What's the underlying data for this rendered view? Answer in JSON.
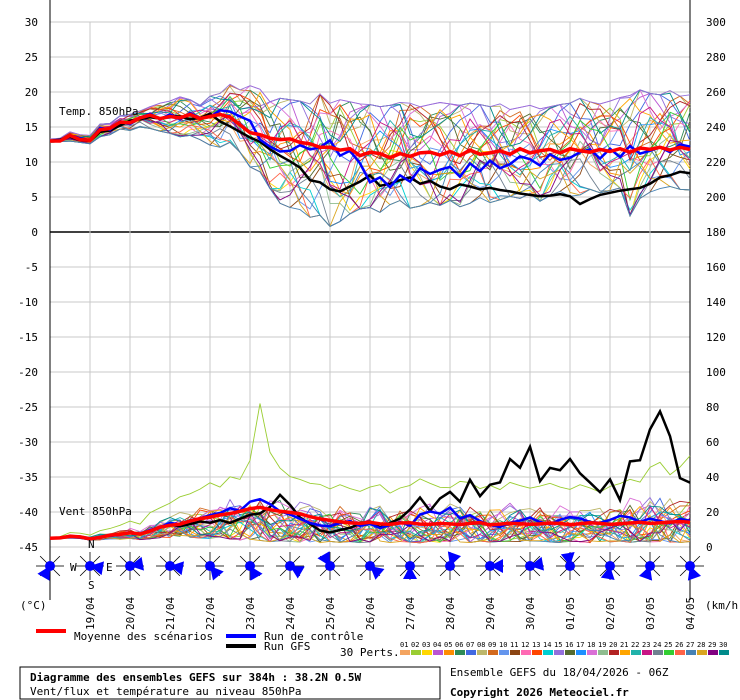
{
  "chart_data": {
    "type": "line",
    "title": "Diagramme des ensembles GEFS sur 384h : 38.2N 0.5W",
    "subtitle": "Vent/flux et température au niveau 850hPa",
    "run_info": "Ensemble GEFS du 18/04/2026 - 06Z",
    "copyright": "Copyright 2026 Meteociel.fr",
    "units_left": "(°C)",
    "units_right": "(km/h)",
    "x_dates": [
      "19/04",
      "20/04",
      "21/04",
      "22/04",
      "23/04",
      "24/04",
      "25/04",
      "26/04",
      "27/04",
      "28/04",
      "29/04",
      "30/04",
      "01/05",
      "02/05",
      "03/05",
      "04/05"
    ],
    "x_range_days": [
      0,
      16
    ],
    "y_left_ticks": [
      30,
      25,
      20,
      15,
      10,
      5,
      0,
      -5,
      -10,
      -15,
      -20,
      -25,
      -30,
      -35,
      -40,
      -45
    ],
    "y_right_ticks": [
      300,
      280,
      260,
      240,
      220,
      200,
      180,
      160,
      140,
      120,
      100,
      80,
      60,
      40,
      20,
      0
    ],
    "y_left_range": [
      -45,
      30
    ],
    "y_right_range": [
      0,
      300
    ],
    "temp_panel": {
      "label": "Temp. 850hPa",
      "unit": "°C",
      "mean": [
        13,
        13,
        13.8,
        13.2,
        13.1,
        14.6,
        14.8,
        15.7,
        15.6,
        16.3,
        16.7,
        16.2,
        16.5,
        16.3,
        16.8,
        16.2,
        16.5,
        16.8,
        16.4,
        15.3,
        14.2,
        13.9,
        13.4,
        13.2,
        13.3,
        12.8,
        12.6,
        12.1,
        12.1,
        11.7,
        11.9,
        10.9,
        11.4,
        11.2,
        10.6,
        11.2,
        10.8,
        11.3,
        11.4,
        11,
        11.5,
        10.9,
        11.7,
        11.1,
        11.3,
        11.6,
        11.1,
        11.9,
        11.3,
        11.6,
        11.8,
        11.3,
        11.9,
        11.6,
        11.4,
        11.8,
        11.5,
        11.9,
        11.4,
        12,
        11.8,
        12.1,
        11.7,
        12.1,
        11.8
      ],
      "control": [
        13,
        13.1,
        13.8,
        13.4,
        13.1,
        14.9,
        14.6,
        15.8,
        15.4,
        16.3,
        16.9,
        16.1,
        16.8,
        16.1,
        17,
        16.3,
        16.4,
        17.4,
        17.2,
        16.5,
        15.9,
        13.2,
        12.2,
        11.5,
        11.6,
        12.4,
        11.8,
        12.1,
        13.1,
        10.9,
        11.6,
        9.8,
        7.1,
        7.8,
        6.4,
        8.1,
        7.2,
        9.1,
        8.3,
        8.9,
        9.3,
        7.9,
        9.8,
        8.7,
        10.2,
        9.1,
        9.7,
        10.8,
        10.4,
        9.5,
        11.1,
        10.3,
        10.6,
        11.4,
        11.8,
        10.5,
        11.9,
        10.7,
        12.3,
        11.2,
        11.6,
        12.1,
        11.4,
        12.5,
        12.2
      ],
      "gfs": [
        13,
        13.2,
        13.6,
        13.1,
        13,
        14.3,
        14.5,
        15.2,
        15.9,
        16.1,
        16.4,
        16.2,
        16.6,
        16.5,
        16.1,
        16.3,
        16.9,
        15.8,
        15.1,
        14.3,
        13.5,
        12.9,
        11.8,
        10.9,
        10.1,
        9.2,
        7.4,
        7.1,
        6.1,
        5.8,
        6.5,
        7.2,
        8.1,
        6.6,
        6.9,
        7.4,
        7.8,
        6.9,
        7.3,
        6.5,
        6.1,
        6.8,
        6.5,
        6.1,
        6.3,
        6,
        5.8,
        5.5,
        5.3,
        5.1,
        5.2,
        5.4,
        5.1,
        4,
        4.7,
        5.3,
        5.6,
        5.9,
        6.1,
        6.3,
        6.9,
        7.8,
        8.1,
        8.6,
        8.4
      ],
      "spread_min": [
        12.8,
        12.9,
        13,
        12.8,
        12.6,
        13.6,
        13.9,
        14.7,
        14.5,
        15,
        14.8,
        14.4,
        14.1,
        13.6,
        13.8,
        13.2,
        12.4,
        12.1,
        12.8,
        11.4,
        9.3,
        8.6,
        6.2,
        4.1,
        3.5,
        3.2,
        2.1,
        2.4,
        0.8,
        1.5,
        2.6,
        3.3,
        3.5,
        2.8,
        3.9,
        4.5,
        3.4,
        3.7,
        4.2,
        3.8,
        4.5,
        3.6,
        4.1,
        4.9,
        4.2,
        4.6,
        5.1,
        4.8,
        5.5,
        4.4,
        5.2,
        5.8,
        5.1,
        5.3,
        6.1,
        5.6,
        5.9,
        6.3,
        2.3,
        4.8,
        5.7,
        6.2,
        6.5,
        6.1,
        6
      ],
      "spread_max": [
        13.3,
        13.4,
        14.3,
        13.9,
        13.8,
        15.4,
        15.5,
        16.6,
        16.8,
        17.3,
        17.9,
        18.4,
        18.7,
        19.3,
        18.9,
        18.1,
        19.4,
        19.8,
        21.1,
        20.3,
        20.9,
        20.4,
        18.6,
        19.1,
        18.9,
        18.7,
        18.3,
        19.7,
        18.4,
        18.9,
        18.6,
        18.3,
        18.2,
        17.9,
        18.1,
        18.5,
        18.4,
        17.9,
        18.2,
        18.5,
        18.3,
        18.1,
        18.4,
        18.2,
        17.9,
        18.3,
        17.5,
        17.8,
        18.1,
        17.6,
        17.9,
        18.2,
        18.4,
        19.1,
        18.6,
        18.3,
        18.7,
        19.2,
        19.5,
        20.3,
        19.8,
        19.6,
        20.2,
        19.4,
        19.6
      ]
    },
    "wind_panel": {
      "label": "Vent 850hPa",
      "unit": "km/h",
      "mean": [
        5,
        5.2,
        6.1,
        5.8,
        4.7,
        5.5,
        6.8,
        7.2,
        8.1,
        7.4,
        9.1,
        11.3,
        12.4,
        13.1,
        14.8,
        16.2,
        17.1,
        18.3,
        19.1,
        20.4,
        21.9,
        22.7,
        21.3,
        20.4,
        19.8,
        18.9,
        17.3,
        16.1,
        15.2,
        14.4,
        13.8,
        13.5,
        14.1,
        13.2,
        12.9,
        13.7,
        13.9,
        13.1,
        12.9,
        13.4,
        13.2,
        12.8,
        13.5,
        13.9,
        12.7,
        13.1,
        13.6,
        13.3,
        12.9,
        13.2,
        13.7,
        13.4,
        12.8,
        13.3,
        13.9,
        13.5,
        12.9,
        13.3,
        13.7,
        14.1,
        13.5,
        13.8,
        14.2,
        14.6,
        14.1
      ],
      "control": [
        5,
        5.3,
        5.9,
        5.4,
        4.6,
        5.8,
        6.3,
        7.1,
        8.2,
        7.3,
        9.8,
        11.4,
        13.8,
        12.9,
        15.3,
        16.4,
        18.2,
        19.4,
        22.1,
        20.7,
        25.9,
        27.3,
        24.5,
        20.4,
        18.6,
        16.1,
        13.7,
        12.3,
        11.9,
        13.6,
        14.8,
        12.1,
        13.2,
        10.8,
        12.6,
        14.3,
        12.1,
        18.6,
        20.3,
        19.1,
        22.5,
        16.4,
        18.2,
        14.8,
        12.6,
        11.4,
        13.9,
        15.1,
        16.8,
        14.3,
        12.9,
        15.6,
        17.1,
        16.3,
        14.2,
        13.9,
        15.5,
        17.8,
        16.9,
        14.4,
        16.2,
        14.8,
        13.5,
        16.1,
        14.9
      ],
      "gfs": [
        5,
        5.1,
        6.3,
        5.9,
        4.8,
        5.6,
        6.6,
        7.3,
        8.4,
        7.2,
        8.9,
        11.1,
        12.8,
        11.9,
        13.1,
        14.6,
        13.9,
        15.3,
        13.8,
        16.1,
        18.4,
        19.2,
        22.9,
        29.8,
        24.1,
        16.8,
        13.2,
        9.4,
        8.3,
        9.7,
        10.9,
        13.3,
        14.6,
        11.2,
        13.8,
        16.2,
        21.4,
        28.3,
        20.7,
        27.8,
        31.5,
        25.9,
        38.4,
        29.1,
        35.6,
        36.9,
        50.2,
        45.3,
        57.3,
        37.6,
        45.2,
        43.9,
        50.3,
        42.1,
        36.8,
        31.4,
        38.6,
        26.8,
        48.9,
        49.6,
        67.2,
        77.5,
        63.4,
        39.4,
        36.8
      ],
      "spread_min": [
        4.8,
        4.9,
        5.1,
        4.8,
        3.9,
        4.1,
        4.6,
        4.4,
        4.9,
        4.2,
        4.7,
        5.3,
        5.5,
        4.8,
        5.6,
        5.1,
        4.9,
        5.8,
        4.6,
        3.9,
        4.4,
        3.8,
        3.1,
        3.6,
        3.2,
        2.8,
        2.9,
        2.6,
        3.2,
        2.7,
        3.1,
        2.5,
        2.9,
        3.4,
        2.6,
        3.1,
        2.8,
        2.4,
        3.3,
        2.7,
        3.1,
        2.9,
        2.6,
        3.4,
        2.8,
        3.2,
        2.5,
        3.1,
        2.7,
        3.3,
        2.9,
        2.6,
        3.2,
        2.8,
        2.5,
        3.1,
        2.9,
        3.4,
        2.7,
        3.3,
        2.9,
        3.1,
        2.8,
        2.6,
        3.1
      ],
      "spread_max": [
        5.2,
        5.9,
        8.2,
        7.9,
        6.8,
        9.3,
        10.6,
        12.4,
        14.8,
        13.1,
        19.6,
        22.4,
        25.1,
        28.7,
        30.4,
        33.1,
        36.7,
        34.2,
        40.1,
        38.6,
        49.5,
        82.4,
        54.1,
        45.1,
        40.2,
        38.6,
        36.4,
        35.8,
        33.2,
        35.6,
        33.4,
        31.8,
        34.2,
        35.6,
        30.8,
        33.7,
        35.2,
        38.9,
        36.4,
        34.1,
        33.9,
        37.5,
        36.8,
        33.4,
        35.2,
        32.8,
        36.9,
        35.1,
        33.6,
        34.8,
        36.4,
        34.2,
        32.9,
        35.6,
        33.8,
        31.4,
        34.6,
        36.2,
        38.7,
        37.1,
        45.5,
        48.4,
        41.3,
        45.7,
        52.1
      ]
    },
    "wind_roses": [
      {
        "date_idx": 0,
        "dir_deg": 210
      },
      {
        "date_idx": 1,
        "dir_deg": 100
      },
      {
        "date_idx": 2,
        "dir_deg": 80
      },
      {
        "date_idx": 3,
        "dir_deg": 100
      },
      {
        "date_idx": 4,
        "dir_deg": 140
      },
      {
        "date_idx": 5,
        "dir_deg": 150
      },
      {
        "date_idx": 6,
        "dir_deg": 120
      },
      {
        "date_idx": 7,
        "dir_deg": 330
      },
      {
        "date_idx": 8,
        "dir_deg": 130
      },
      {
        "date_idx": 9,
        "dir_deg": 180
      },
      {
        "date_idx": 10,
        "dir_deg": 20
      },
      {
        "date_idx": 11,
        "dir_deg": 90
      },
      {
        "date_idx": 12,
        "dir_deg": 80
      },
      {
        "date_idx": 13,
        "dir_deg": 350
      },
      {
        "date_idx": 14,
        "dir_deg": 190
      },
      {
        "date_idx": 15,
        "dir_deg": 200
      },
      {
        "date_idx": 16,
        "dir_deg": 160
      }
    ],
    "compass_labels": {
      "n": "N",
      "w": "W",
      "e": "E",
      "s": "S"
    },
    "legend": {
      "mean": "Moyenne des scénarios",
      "control": "Run de contrôle",
      "gfs": "Run GFS",
      "perts": "30 Perts."
    },
    "colors": {
      "mean": "#ff0000",
      "control": "#0000ff",
      "gfs": "#000000",
      "grid": "#c8c8c8"
    },
    "pert_ids": [
      "01",
      "02",
      "03",
      "04",
      "05",
      "06",
      "07",
      "08",
      "09",
      "10",
      "11",
      "12",
      "13",
      "14",
      "15",
      "16",
      "17",
      "18",
      "19",
      "20",
      "21",
      "22",
      "23",
      "24",
      "25",
      "26",
      "27",
      "28",
      "29",
      "30"
    ],
    "pert_colors": [
      "#f4a460",
      "#9acd32",
      "#ffd700",
      "#ba55d3",
      "#ff8c00",
      "#2e8b57",
      "#4169e1",
      "#bdb76b",
      "#d2691e",
      "#6495ed",
      "#8b4513",
      "#ff69b4",
      "#ff4500",
      "#00ced1",
      "#9370db",
      "#556b2f",
      "#1e90ff",
      "#da70d6",
      "#8fbc8f",
      "#b22222",
      "#ffa500",
      "#20b2aa",
      "#c71585",
      "#708090",
      "#32cd32",
      "#ff6347",
      "#4682b4",
      "#daa520",
      "#800080",
      "#008b8b"
    ]
  }
}
